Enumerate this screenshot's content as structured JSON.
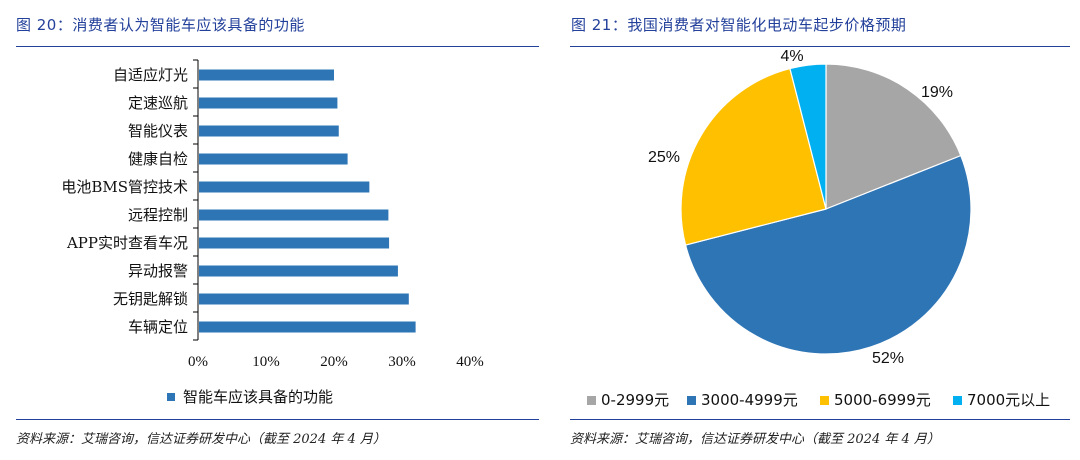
{
  "left": {
    "title": "图 20：消费者认为智能车应该具备的功能",
    "source": "资料来源：艾瑞咨询，信达证券研发中心（截至 2024 年 4 月）"
  },
  "right": {
    "title": "图 21：我国消费者对智能化电动车起步价格预期",
    "source": "资料来源：艾瑞咨询，信达证券研发中心（截至 2024 年 4 月）"
  },
  "chart_data": [
    {
      "type": "bar",
      "orientation": "horizontal",
      "title": "",
      "categories": [
        "自适应灯光",
        "定速巡航",
        "智能仪表",
        "健康自检",
        "电池BMS管控技术",
        "远程控制",
        "APP实时查看车况",
        "异动报警",
        "无钥匙解锁",
        "车辆定位"
      ],
      "series": [
        {
          "name": "智能车应该具备的功能",
          "values": [
            0.2,
            0.205,
            0.207,
            0.22,
            0.252,
            0.28,
            0.281,
            0.294,
            0.31,
            0.32
          ],
          "color": "#2e75b6"
        }
      ],
      "xlim": [
        0,
        0.4
      ],
      "xticks": [
        0,
        0.1,
        0.2,
        0.3,
        0.4
      ],
      "xtick_labels": [
        "0%",
        "10%",
        "20%",
        "30%",
        "40%"
      ],
      "legend": "bottom",
      "grid": false
    },
    {
      "type": "pie",
      "title": "",
      "slices": [
        {
          "name": "0-2999元",
          "value": 19,
          "label": "19%",
          "color": "#a6a6a6"
        },
        {
          "name": "3000-4999元",
          "value": 52,
          "label": "52%",
          "color": "#2e75b6"
        },
        {
          "name": "5000-6999元",
          "value": 25,
          "label": "25%",
          "color": "#ffc000"
        },
        {
          "name": "7000元以上",
          "value": 4,
          "label": "4%",
          "color": "#00b0f0"
        }
      ],
      "legend": "bottom"
    }
  ]
}
